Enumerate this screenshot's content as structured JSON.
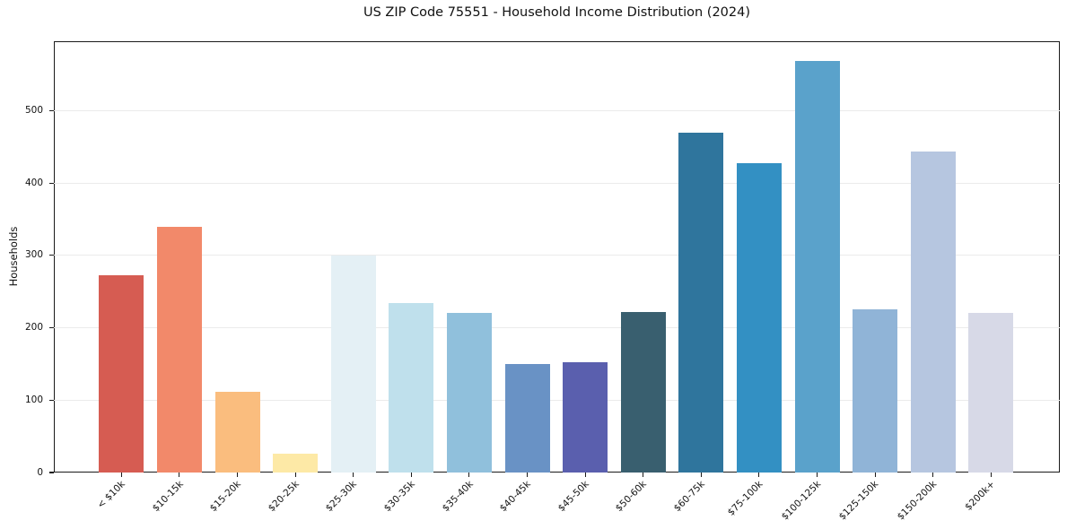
{
  "chart_data": {
    "type": "bar",
    "title": "US ZIP Code 75551 - Household Income Distribution (2024)",
    "xlabel": "",
    "ylabel": "Households",
    "categories": [
      "< $10k",
      "$10-15k",
      "$15-20k",
      "$20-25k",
      "$25-30k",
      "$30-35k",
      "$35-40k",
      "$40-45k",
      "$45-50k",
      "$50-60k",
      "$60-75k",
      "$75-100k",
      "$100-125k",
      "$125-150k",
      "$150-200k",
      "$200k+"
    ],
    "values": [
      273,
      339,
      112,
      26,
      300,
      234,
      220,
      150,
      152,
      222,
      469,
      427,
      569,
      226,
      443,
      221
    ],
    "bar_colors": [
      "#d65c52",
      "#f2896a",
      "#fabd7e",
      "#fde9a6",
      "#e4f0f5",
      "#bfe0ec",
      "#90c0dc",
      "#6992c5",
      "#5a5fae",
      "#395f6f",
      "#2f759d",
      "#3390c3",
      "#5aa2cb",
      "#90b4d7",
      "#b6c6e0",
      "#d7d9e7"
    ],
    "yticks": [
      0,
      100,
      200,
      300,
      400,
      500
    ],
    "ylim": [
      0,
      596
    ],
    "grid": "horizontal-light",
    "gridline_color": "#ebebeb",
    "axis_color": "#1a1a1a",
    "background": "#ffffff",
    "legend": "none",
    "xtick_rotation_deg": 45
  }
}
